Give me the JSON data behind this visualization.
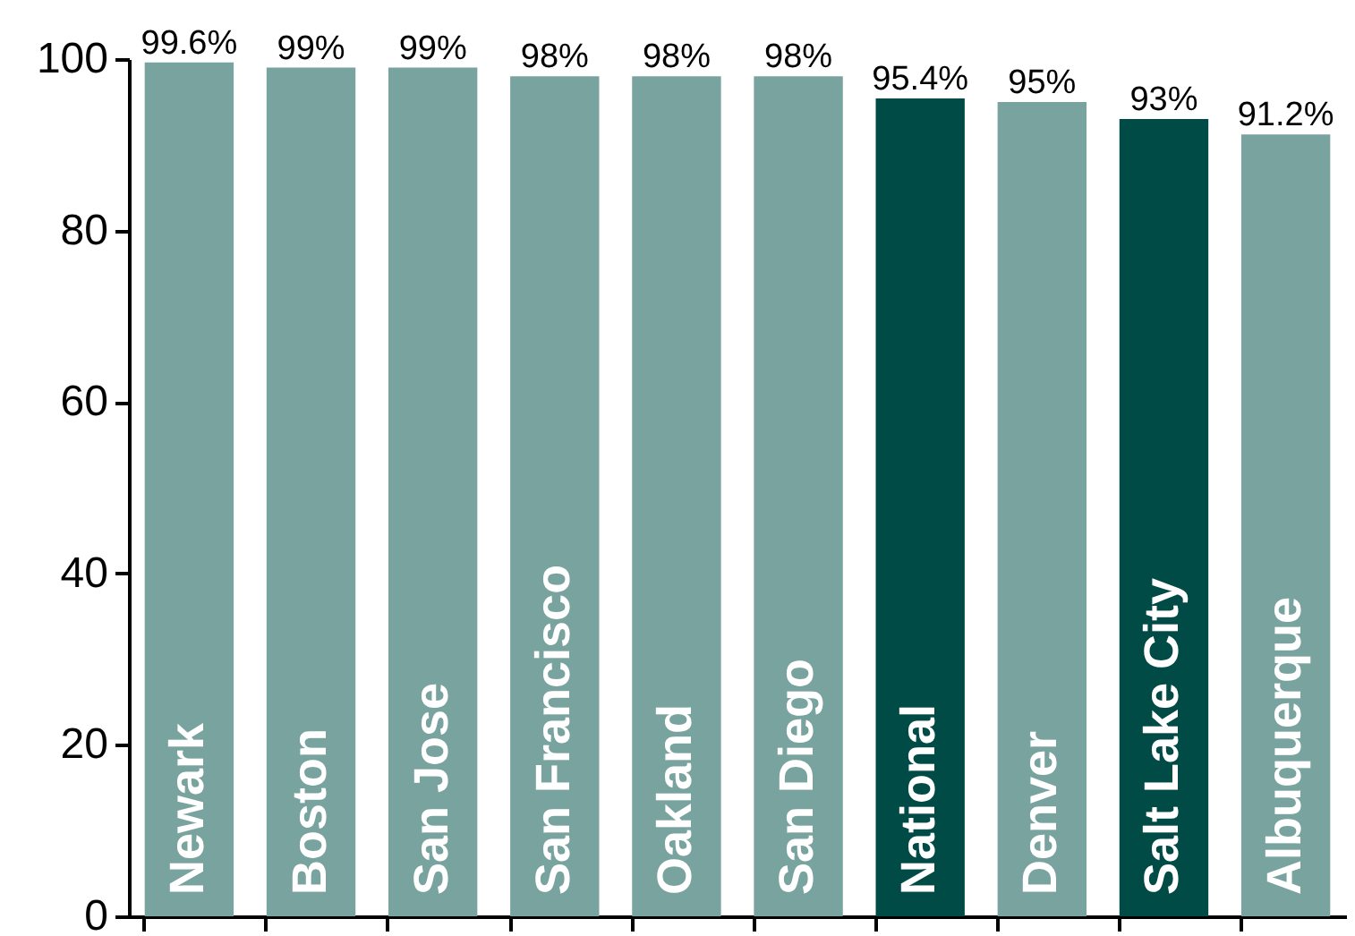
{
  "chart_data": {
    "type": "bar",
    "categories": [
      "Newark",
      "Boston",
      "San Jose",
      "San Francisco",
      "Oakland",
      "San Diego",
      "National",
      "Denver",
      "Salt Lake City",
      "Albuquerque"
    ],
    "values": [
      99.6,
      99,
      99,
      98,
      98,
      98,
      95.4,
      95,
      93,
      91.2
    ],
    "colors": [
      "#78a39e",
      "#78a39e",
      "#78a39e",
      "#78a39e",
      "#78a39e",
      "#78a39e",
      "#004b45",
      "#78a39e",
      "#004b45",
      "#78a39e"
    ],
    "value_labels": [
      "99.6%",
      "99%",
      "99%",
      "98%",
      "98%",
      "98%",
      "95.4%",
      "95%",
      "93%",
      "91.2%"
    ],
    "ylim": [
      0,
      100
    ],
    "yticks": [
      0,
      20,
      40,
      60,
      80,
      100
    ],
    "grid": false
  }
}
